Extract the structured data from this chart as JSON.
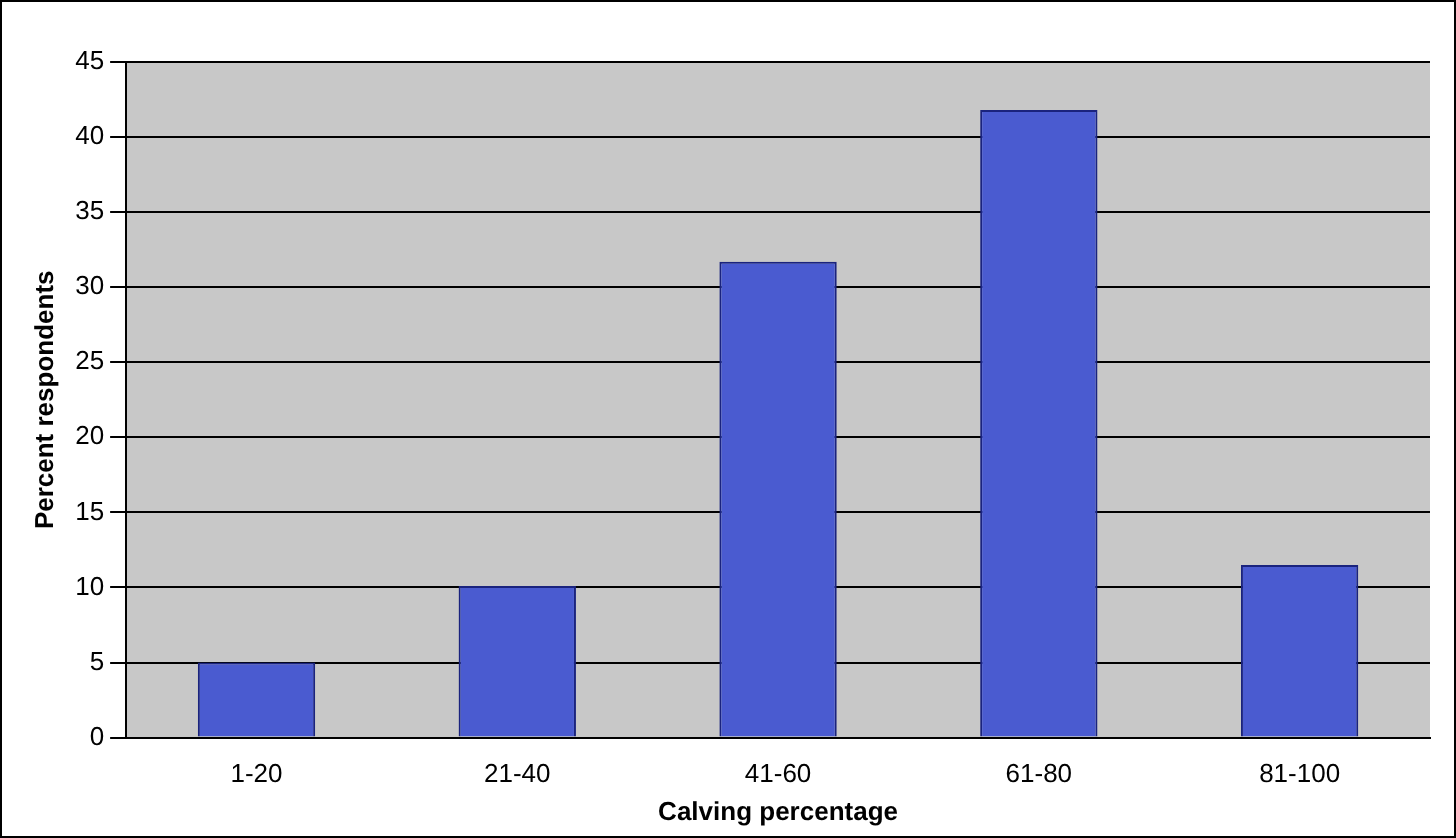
{
  "chart_data": {
    "type": "bar",
    "xlabel": "Calving percentage",
    "ylabel": "Percent respondents",
    "categories": [
      "1-20",
      "21-40",
      "41-60",
      "61-80",
      "81-100"
    ],
    "values": [
      5,
      10.1,
      31.7,
      41.8,
      11.5
    ],
    "color": "#4a5bd0",
    "ylim": [
      0,
      45
    ],
    "yticks": [
      0,
      5,
      10,
      15,
      20,
      25,
      30,
      35,
      40,
      45
    ],
    "grid": "y",
    "legend": false
  }
}
